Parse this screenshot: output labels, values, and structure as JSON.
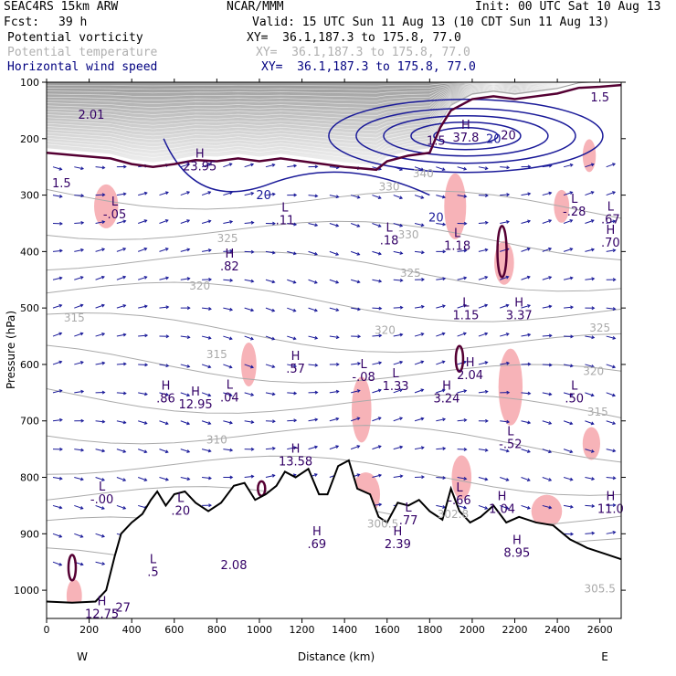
{
  "header": {
    "model": "SEAC4RS 15km ARW",
    "center": "NCAR/MMM",
    "init": "Init: 00 UTC Sat 10 Aug 13",
    "fcst_label": "Fcst:",
    "fcst_value": "39 h",
    "valid": "Valid: 15 UTC Sun 11 Aug 13 (10 CDT Sun 11 Aug 13)",
    "fields": [
      {
        "name": "Potential vorticity",
        "xy": "XY=  36.1,187.3 to 175.8, 77.0",
        "color": "#000000"
      },
      {
        "name": "Potential temperature",
        "xy": "XY=  36.1,187.3 to 175.8, 77.0",
        "color": "#b0b0b0"
      },
      {
        "name": "Horizontal wind speed",
        "xy": "XY=  36.1,187.3 to 175.8, 77.0",
        "color": "#000080"
      }
    ]
  },
  "colors": {
    "pv_contour": "#550033",
    "theta_contour": "#aaaaaa",
    "wind_contour": "#1a1a99",
    "wind_vector": "#1a1a99",
    "pink_fill": "#f7b3b8",
    "high_pv": "#333333",
    "terrain": "#000000",
    "annotation": "#330066"
  },
  "chart_data": {
    "type": "cross-section",
    "xlabel": "Distance (km)",
    "ylabel": "Pressure (hPa)",
    "xlim": [
      0,
      2700
    ],
    "ylim": [
      1050,
      100
    ],
    "x_ticks": [
      0,
      200,
      400,
      600,
      800,
      1000,
      1200,
      1400,
      1600,
      1800,
      2000,
      2200,
      2400,
      2600
    ],
    "x_tick_labels": [
      "0",
      "200",
      "400",
      "600",
      "800",
      "1000",
      "1200",
      "1400",
      "1600",
      "1800",
      "2000",
      "2200",
      "2400",
      "2600"
    ],
    "y_ticks": [
      100,
      200,
      300,
      400,
      500,
      600,
      700,
      800,
      900,
      1000
    ],
    "y_tick_labels": [
      "100",
      "200",
      "300",
      "400",
      "500",
      "600",
      "700",
      "800",
      "900",
      "1000"
    ],
    "left_end_label": "W",
    "right_end_label": "E",
    "terrain": [
      [
        0,
        1020
      ],
      [
        120,
        1022
      ],
      [
        230,
        1020
      ],
      [
        280,
        1000
      ],
      [
        320,
        940
      ],
      [
        350,
        900
      ],
      [
        400,
        880
      ],
      [
        450,
        865
      ],
      [
        490,
        840
      ],
      [
        520,
        825
      ],
      [
        560,
        850
      ],
      [
        600,
        830
      ],
      [
        650,
        825
      ],
      [
        700,
        845
      ],
      [
        760,
        860
      ],
      [
        820,
        845
      ],
      [
        880,
        815
      ],
      [
        930,
        810
      ],
      [
        980,
        840
      ],
      [
        1030,
        830
      ],
      [
        1080,
        815
      ],
      [
        1120,
        790
      ],
      [
        1170,
        800
      ],
      [
        1230,
        785
      ],
      [
        1280,
        830
      ],
      [
        1320,
        830
      ],
      [
        1370,
        780
      ],
      [
        1420,
        770
      ],
      [
        1460,
        820
      ],
      [
        1520,
        830
      ],
      [
        1560,
        870
      ],
      [
        1600,
        880
      ],
      [
        1650,
        845
      ],
      [
        1700,
        850
      ],
      [
        1750,
        840
      ],
      [
        1800,
        860
      ],
      [
        1860,
        875
      ],
      [
        1900,
        820
      ],
      [
        1940,
        860
      ],
      [
        1990,
        880
      ],
      [
        2040,
        870
      ],
      [
        2100,
        850
      ],
      [
        2160,
        880
      ],
      [
        2220,
        870
      ],
      [
        2300,
        880
      ],
      [
        2380,
        885
      ],
      [
        2460,
        910
      ],
      [
        2540,
        925
      ],
      [
        2620,
        935
      ],
      [
        2700,
        945
      ]
    ],
    "pv_tropopause": [
      [
        0,
        225
      ],
      [
        150,
        230
      ],
      [
        300,
        235
      ],
      [
        400,
        245
      ],
      [
        500,
        250
      ],
      [
        600,
        245
      ],
      [
        700,
        238
      ],
      [
        800,
        240
      ],
      [
        900,
        235
      ],
      [
        1000,
        240
      ],
      [
        1100,
        235
      ],
      [
        1200,
        240
      ],
      [
        1300,
        245
      ],
      [
        1400,
        250
      ],
      [
        1550,
        255
      ],
      [
        1600,
        240
      ],
      [
        1700,
        230
      ],
      [
        1800,
        225
      ],
      [
        1850,
        180
      ],
      [
        1900,
        150
      ],
      [
        2000,
        130
      ],
      [
        2100,
        125
      ],
      [
        2200,
        130
      ],
      [
        2300,
        125
      ],
      [
        2400,
        120
      ],
      [
        2500,
        110
      ],
      [
        2600,
        108
      ],
      [
        2700,
        105
      ]
    ],
    "theta_labels": [
      {
        "x": 1610,
        "p": 292,
        "text": "330"
      },
      {
        "x": 1770,
        "p": 268,
        "text": "340"
      },
      {
        "x": 850,
        "p": 383,
        "text": "325"
      },
      {
        "x": 1700,
        "p": 377,
        "text": "330"
      },
      {
        "x": 1710,
        "p": 445,
        "text": "325"
      },
      {
        "x": 720,
        "p": 467,
        "text": "320"
      },
      {
        "x": 1590,
        "p": 546,
        "text": "320"
      },
      {
        "x": 130,
        "p": 524,
        "text": "315"
      },
      {
        "x": 2600,
        "p": 542,
        "text": "325"
      },
      {
        "x": 800,
        "p": 589,
        "text": "315"
      },
      {
        "x": 2570,
        "p": 619,
        "text": "320"
      },
      {
        "x": 800,
        "p": 740,
        "text": "310"
      },
      {
        "x": 2590,
        "p": 691,
        "text": "315"
      },
      {
        "x": 1910,
        "p": 872,
        "text": "302.8"
      },
      {
        "x": 1580,
        "p": 889,
        "text": "300.5"
      },
      {
        "x": 2600,
        "p": 1004,
        "text": "305.5"
      }
    ],
    "wind_speed_labels": [
      {
        "x": 1020,
        "p": 307,
        "text": "20"
      },
      {
        "x": 1830,
        "p": 347,
        "text": "20"
      },
      {
        "x": 2100,
        "p": 208,
        "text": "20"
      }
    ],
    "extrema": [
      {
        "x": 210,
        "p": 165,
        "letter": "",
        "value": "2.01"
      },
      {
        "x": 1970,
        "p": 205,
        "letter": "H",
        "value": "37.8"
      },
      {
        "x": 2600,
        "p": 134,
        "letter": "",
        "value": "1.5"
      },
      {
        "x": 2170,
        "p": 201,
        "letter": "",
        "value": "20"
      },
      {
        "x": 1830,
        "p": 211,
        "letter": "",
        "value": "1.5"
      },
      {
        "x": 70,
        "p": 286,
        "letter": "",
        "value": "1.5"
      },
      {
        "x": 720,
        "p": 256,
        "letter": "H",
        "value": "23.95"
      },
      {
        "x": 320,
        "p": 341,
        "letter": "L",
        "value": "-.05"
      },
      {
        "x": 1120,
        "p": 352,
        "letter": "L",
        "value": ".11"
      },
      {
        "x": 1610,
        "p": 387,
        "letter": "L",
        "value": ".18"
      },
      {
        "x": 1930,
        "p": 397,
        "letter": "L",
        "value": "1.18"
      },
      {
        "x": 2480,
        "p": 336,
        "letter": "L",
        "value": "-.28"
      },
      {
        "x": 2650,
        "p": 350,
        "letter": "L",
        "value": ".67"
      },
      {
        "x": 2650,
        "p": 391,
        "letter": "H",
        "value": ".70"
      },
      {
        "x": 860,
        "p": 433,
        "letter": "H",
        "value": ".82"
      },
      {
        "x": 1970,
        "p": 520,
        "letter": "L",
        "value": "1.15"
      },
      {
        "x": 2220,
        "p": 520,
        "letter": "H",
        "value": "3.37"
      },
      {
        "x": 1170,
        "p": 615,
        "letter": "H",
        "value": ".57"
      },
      {
        "x": 1490,
        "p": 629,
        "letter": "L",
        "value": "-.08"
      },
      {
        "x": 1640,
        "p": 645,
        "letter": "L",
        "value": "1.33"
      },
      {
        "x": 1990,
        "p": 626,
        "letter": "H",
        "value": "2.04"
      },
      {
        "x": 1880,
        "p": 667,
        "letter": "H",
        "value": "3.24"
      },
      {
        "x": 2480,
        "p": 667,
        "letter": "L",
        "value": ".50"
      },
      {
        "x": 560,
        "p": 667,
        "letter": "H",
        "value": ".86"
      },
      {
        "x": 700,
        "p": 678,
        "letter": "H",
        "value": "12.95"
      },
      {
        "x": 860,
        "p": 666,
        "letter": "L",
        "value": ".04"
      },
      {
        "x": 2180,
        "p": 748,
        "letter": "L",
        "value": "-.52"
      },
      {
        "x": 1170,
        "p": 779,
        "letter": "H",
        "value": "13.58"
      },
      {
        "x": 260,
        "p": 846,
        "letter": "L",
        "value": "-.00"
      },
      {
        "x": 630,
        "p": 866,
        "letter": "L",
        "value": ".20"
      },
      {
        "x": 1940,
        "p": 848,
        "letter": "L",
        "value": "-.66"
      },
      {
        "x": 2140,
        "p": 863,
        "letter": "H",
        "value": "1.04"
      },
      {
        "x": 2650,
        "p": 863,
        "letter": "H",
        "value": "11.0"
      },
      {
        "x": 1700,
        "p": 883,
        "letter": "L",
        "value": ".77"
      },
      {
        "x": 1650,
        "p": 925,
        "letter": "H",
        "value": "2.39"
      },
      {
        "x": 1270,
        "p": 925,
        "letter": "H",
        "value": ".69"
      },
      {
        "x": 2210,
        "p": 941,
        "letter": "H",
        "value": "8.95"
      },
      {
        "x": 500,
        "p": 975,
        "letter": "L",
        "value": ".5"
      },
      {
        "x": 880,
        "p": 963,
        "letter": "",
        "value": "2.08"
      },
      {
        "x": 260,
        "p": 1049,
        "letter": "H",
        "value": "12.75"
      },
      {
        "x": 350,
        "p": 1038,
        "letter": "",
        "value": ".27"
      }
    ]
  }
}
